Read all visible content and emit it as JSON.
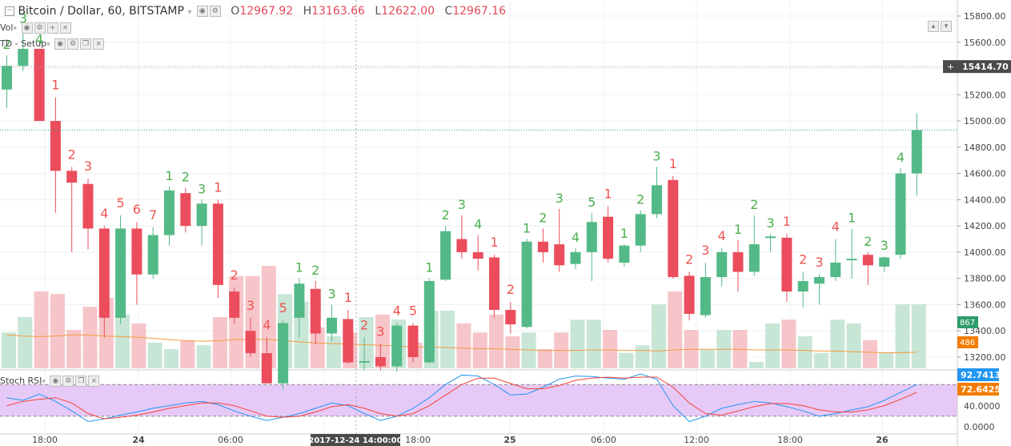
{
  "header": {
    "symbol": "Bitcoin / Dollar, 60, BITSTAMP",
    "o_label": "O",
    "o_value": "12967.92",
    "h_label": "H",
    "h_value": "13163.66",
    "l_label": "L",
    "l_value": "12622.00",
    "c_label": "C",
    "c_value": "12967.16",
    "vol_label": "Vol",
    "td_label": "TD - Setup",
    "rsi_label": "Stoch RSI"
  },
  "colors": {
    "up": "#53b987",
    "down": "#eb4d5c",
    "vol_up": "#c8e6d6",
    "vol_down": "#f6c5c9",
    "ma": "#f59b42",
    "rsi_k": "#2196f3",
    "rsi_d": "#f44336",
    "rsi_band": "#e7c9f7"
  },
  "chart_data": {
    "type": "candlestick",
    "price_axis": {
      "min": 13200,
      "max": 15800,
      "ticks": [
        "15800.00",
        "15600.00",
        "15400.00",
        "15200.00",
        "15000.00",
        "14800.00",
        "14600.00",
        "14400.00",
        "14200.00",
        "14000.00",
        "13800.00",
        "13600.00",
        "13400.00",
        "13200.00"
      ]
    },
    "crosshair_price": "15414.70",
    "volume_labels": {
      "volume": "867",
      "ma": "486"
    },
    "rsi_axis": {
      "ticks": [
        "92.7413",
        "72.6425",
        "40.0000",
        "0.0000"
      ]
    },
    "time_labels": [
      "18:00",
      "24",
      "06:00",
      "2017-12-24 14:00:00",
      "18:00",
      "25",
      "06:00",
      "12:00",
      "18:00",
      "26"
    ],
    "candles": [
      {
        "o": 15240,
        "h": 15500,
        "l": 15100,
        "c": 15420,
        "td": "2",
        "tdc": "up"
      },
      {
        "o": 15420,
        "h": 15700,
        "l": 15380,
        "c": 15550,
        "td": "3",
        "tdc": "up"
      },
      {
        "o": 15550,
        "h": 15540,
        "l": 15000,
        "c": 15000,
        "td": "4",
        "tdc": "up"
      },
      {
        "o": 15000,
        "h": 15180,
        "l": 14300,
        "c": 14620,
        "td": "1",
        "tdc": "down"
      },
      {
        "o": 14620,
        "h": 14650,
        "l": 14000,
        "c": 14530,
        "td": "2",
        "tdc": "down"
      },
      {
        "o": 14520,
        "h": 14560,
        "l": 14020,
        "c": 14180,
        "td": "3",
        "tdc": "down"
      },
      {
        "o": 14180,
        "h": 14200,
        "l": 13350,
        "c": 13500,
        "td": "4",
        "tdc": "down"
      },
      {
        "o": 13500,
        "h": 14280,
        "l": 13450,
        "c": 14180,
        "td": "5",
        "tdc": "down"
      },
      {
        "o": 14180,
        "h": 14230,
        "l": 13600,
        "c": 13830,
        "td": "6",
        "tdc": "down"
      },
      {
        "o": 13830,
        "h": 14190,
        "l": 13800,
        "c": 14130,
        "td": "7",
        "tdc": "down"
      },
      {
        "o": 14130,
        "h": 14500,
        "l": 14050,
        "c": 14470,
        "td": "1",
        "tdc": "up"
      },
      {
        "o": 14450,
        "h": 14490,
        "l": 14150,
        "c": 14200,
        "td": "2",
        "tdc": "up"
      },
      {
        "o": 14200,
        "h": 14400,
        "l": 14050,
        "c": 14370,
        "td": "3",
        "tdc": "up"
      },
      {
        "o": 14370,
        "h": 14400,
        "l": 13650,
        "c": 13750,
        "td": "1",
        "tdc": "down"
      },
      {
        "o": 13700,
        "h": 13730,
        "l": 13450,
        "c": 13500,
        "td": "2",
        "tdc": "down"
      },
      {
        "o": 13400,
        "h": 13500,
        "l": 13200,
        "c": 13230,
        "td": "3",
        "tdc": "down"
      },
      {
        "o": 13230,
        "h": 13350,
        "l": 13000,
        "c": 13000,
        "td": "4",
        "tdc": "down"
      },
      {
        "o": 13000,
        "h": 13480,
        "l": 12950,
        "c": 13460,
        "td": "5",
        "tdc": "down"
      },
      {
        "o": 13500,
        "h": 13800,
        "l": 13350,
        "c": 13760,
        "td": "1",
        "tdc": "up"
      },
      {
        "o": 13720,
        "h": 13780,
        "l": 13300,
        "c": 13380,
        "td": "2",
        "tdc": "up"
      },
      {
        "o": 13380,
        "h": 13600,
        "l": 13320,
        "c": 13500,
        "td": "3",
        "tdc": "up"
      },
      {
        "o": 13490,
        "h": 13560,
        "l": 13150,
        "c": 13160,
        "td": "1",
        "tdc": "down"
      },
      {
        "o": 13160,
        "h": 13350,
        "l": 13100,
        "c": 13170,
        "td": "2",
        "tdc": "down"
      },
      {
        "o": 13200,
        "h": 13300,
        "l": 13100,
        "c": 13130,
        "td": "3",
        "tdc": "down"
      },
      {
        "o": 13130,
        "h": 13460,
        "l": 13090,
        "c": 13440,
        "td": "4",
        "tdc": "down"
      },
      {
        "o": 13440,
        "h": 13460,
        "l": 13160,
        "c": 13200,
        "td": "5",
        "tdc": "down"
      },
      {
        "o": 13160,
        "h": 13800,
        "l": 13150,
        "c": 13780,
        "td": "1",
        "tdc": "up"
      },
      {
        "o": 13790,
        "h": 14200,
        "l": 13780,
        "c": 14160,
        "td": "2",
        "tdc": "up"
      },
      {
        "o": 14100,
        "h": 14280,
        "l": 13950,
        "c": 14000,
        "td": "3",
        "tdc": "up"
      },
      {
        "o": 14000,
        "h": 14130,
        "l": 13860,
        "c": 13950,
        "td": "4",
        "tdc": "up"
      },
      {
        "o": 13960,
        "h": 13980,
        "l": 13500,
        "c": 13560,
        "td": "1",
        "tdc": "down"
      },
      {
        "o": 13560,
        "h": 13620,
        "l": 13380,
        "c": 13450,
        "td": "2",
        "tdc": "down"
      },
      {
        "o": 13430,
        "h": 14100,
        "l": 13420,
        "c": 14080,
        "td": "1",
        "tdc": "up"
      },
      {
        "o": 14080,
        "h": 14180,
        "l": 13920,
        "c": 14000,
        "td": "2",
        "tdc": "up"
      },
      {
        "o": 14060,
        "h": 14330,
        "l": 13850,
        "c": 13900,
        "td": "3",
        "tdc": "up"
      },
      {
        "o": 13910,
        "h": 14030,
        "l": 13870,
        "c": 14000,
        "td": "4",
        "tdc": "up"
      },
      {
        "o": 14000,
        "h": 14300,
        "l": 13780,
        "c": 14230,
        "td": "5",
        "tdc": "up"
      },
      {
        "o": 14270,
        "h": 14350,
        "l": 13920,
        "c": 13950,
        "td": "1",
        "tdc": "down"
      },
      {
        "o": 13920,
        "h": 14060,
        "l": 13890,
        "c": 14050,
        "td": "1",
        "tdc": "up"
      },
      {
        "o": 14050,
        "h": 14320,
        "l": 14000,
        "c": 14290,
        "td": "2",
        "tdc": "up"
      },
      {
        "o": 14290,
        "h": 14650,
        "l": 14260,
        "c": 14510,
        "td": "3",
        "tdc": "up"
      },
      {
        "o": 14550,
        "h": 14580,
        "l": 13800,
        "c": 13810,
        "td": "1",
        "tdc": "down"
      },
      {
        "o": 13820,
        "h": 13850,
        "l": 13480,
        "c": 13530,
        "td": "2",
        "tdc": "down"
      },
      {
        "o": 13520,
        "h": 13920,
        "l": 13500,
        "c": 13810,
        "td": "3",
        "tdc": "down"
      },
      {
        "o": 13810,
        "h": 14030,
        "l": 13740,
        "c": 14000,
        "td": "4",
        "tdc": "down"
      },
      {
        "o": 14000,
        "h": 14090,
        "l": 13700,
        "c": 13850,
        "td": "1",
        "tdc": "up"
      },
      {
        "o": 13850,
        "h": 14280,
        "l": 13820,
        "c": 14060,
        "td": "2",
        "tdc": "up"
      },
      {
        "o": 14110,
        "h": 14140,
        "l": 14000,
        "c": 14120,
        "td": "3",
        "tdc": "up"
      },
      {
        "o": 14110,
        "h": 14140,
        "l": 13620,
        "c": 13700,
        "td": "1",
        "tdc": "down"
      },
      {
        "o": 13700,
        "h": 13850,
        "l": 13580,
        "c": 13780,
        "td": "2",
        "tdc": "down"
      },
      {
        "o": 13760,
        "h": 13830,
        "l": 13600,
        "c": 13810,
        "td": "3",
        "tdc": "down"
      },
      {
        "o": 13810,
        "h": 14100,
        "l": 13780,
        "c": 13920,
        "td": "4",
        "tdc": "down"
      },
      {
        "o": 13940,
        "h": 14180,
        "l": 13800,
        "c": 13950,
        "td": "1",
        "tdc": "up"
      },
      {
        "o": 13980,
        "h": 14000,
        "l": 13750,
        "c": 13900,
        "td": "2",
        "tdc": "up"
      },
      {
        "o": 13890,
        "h": 13970,
        "l": 13850,
        "c": 13960,
        "td": "3",
        "tdc": "up"
      },
      {
        "o": 13980,
        "h": 14640,
        "l": 13950,
        "c": 14600,
        "td": "4",
        "tdc": "up"
      },
      {
        "o": 14600,
        "h": 15060,
        "l": 14430,
        "c": 14930,
        "td": "",
        "tdc": "up"
      }
    ],
    "volume": [
      0.28,
      0.4,
      0.6,
      0.58,
      0.3,
      0.48,
      0.55,
      0.42,
      0.35,
      0.2,
      0.15,
      0.22,
      0.18,
      0.4,
      0.72,
      0.72,
      0.8,
      0.58,
      0.52,
      0.32,
      0.25,
      0.28,
      0.4,
      0.42,
      0.38,
      0.2,
      0.45,
      0.45,
      0.35,
      0.28,
      0.42,
      0.25,
      0.28,
      0.15,
      0.28,
      0.38,
      0.38,
      0.3,
      0.12,
      0.18,
      0.5,
      0.6,
      0.3,
      0.15,
      0.3,
      0.3,
      0.05,
      0.35,
      0.38,
      0.25,
      0.12,
      0.38,
      0.35,
      0.22,
      0.12,
      0.5,
      0.5
    ],
    "volume_ma": [
      0.58,
      0.56,
      0.55,
      0.56,
      0.58,
      0.58,
      0.56,
      0.55,
      0.54,
      0.52,
      0.5,
      0.48,
      0.47,
      0.48,
      0.5,
      0.5,
      0.5,
      0.48,
      0.46,
      0.44,
      0.43,
      0.42,
      0.41,
      0.4,
      0.39,
      0.37,
      0.37,
      0.36,
      0.35,
      0.34,
      0.34,
      0.33,
      0.32,
      0.31,
      0.31,
      0.31,
      0.32,
      0.32,
      0.31,
      0.31,
      0.3,
      0.32,
      0.33,
      0.33,
      0.33,
      0.33,
      0.32,
      0.32,
      0.32,
      0.31,
      0.3,
      0.3,
      0.29,
      0.28,
      0.27,
      0.27,
      0.28
    ],
    "stoch_k": [
      55,
      50,
      62,
      48,
      30,
      10,
      15,
      22,
      28,
      35,
      40,
      45,
      48,
      42,
      30,
      20,
      12,
      18,
      25,
      35,
      45,
      40,
      25,
      12,
      20,
      35,
      55,
      80,
      98,
      96,
      80,
      60,
      62,
      75,
      90,
      96,
      95,
      92,
      90,
      100,
      90,
      40,
      10,
      20,
      35,
      42,
      48,
      45,
      38,
      30,
      20,
      25,
      32,
      38,
      50,
      65,
      80
    ],
    "stoch_d": [
      40,
      48,
      52,
      55,
      45,
      25,
      15,
      18,
      22,
      28,
      35,
      40,
      45,
      45,
      40,
      30,
      20,
      18,
      20,
      28,
      38,
      42,
      35,
      25,
      20,
      25,
      40,
      60,
      80,
      92,
      92,
      82,
      72,
      72,
      78,
      88,
      92,
      94,
      92,
      94,
      94,
      75,
      45,
      25,
      22,
      30,
      38,
      44,
      44,
      40,
      32,
      28,
      28,
      32,
      40,
      52,
      65
    ]
  }
}
